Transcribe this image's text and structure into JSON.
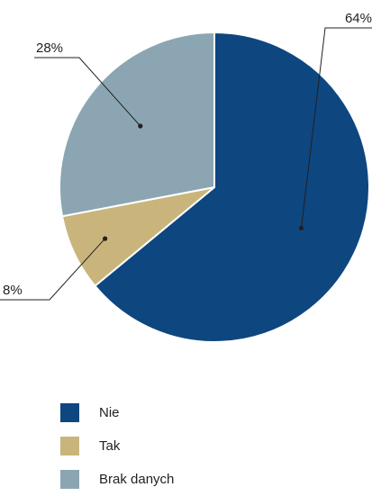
{
  "chart_data": {
    "type": "pie",
    "title": "",
    "slices": [
      {
        "label": "Nie",
        "value": 64,
        "display": "64%",
        "color": "#0e4680"
      },
      {
        "label": "Tak",
        "value": 8,
        "display": "8%",
        "color": "#c9b57c"
      },
      {
        "label": "Brak danych",
        "value": 28,
        "display": "28%",
        "color": "#8ba6b2"
      }
    ],
    "start_angle_deg": 0,
    "direction": "clockwise",
    "legend_position": "bottom-left",
    "label_style": "outside with leader lines"
  }
}
